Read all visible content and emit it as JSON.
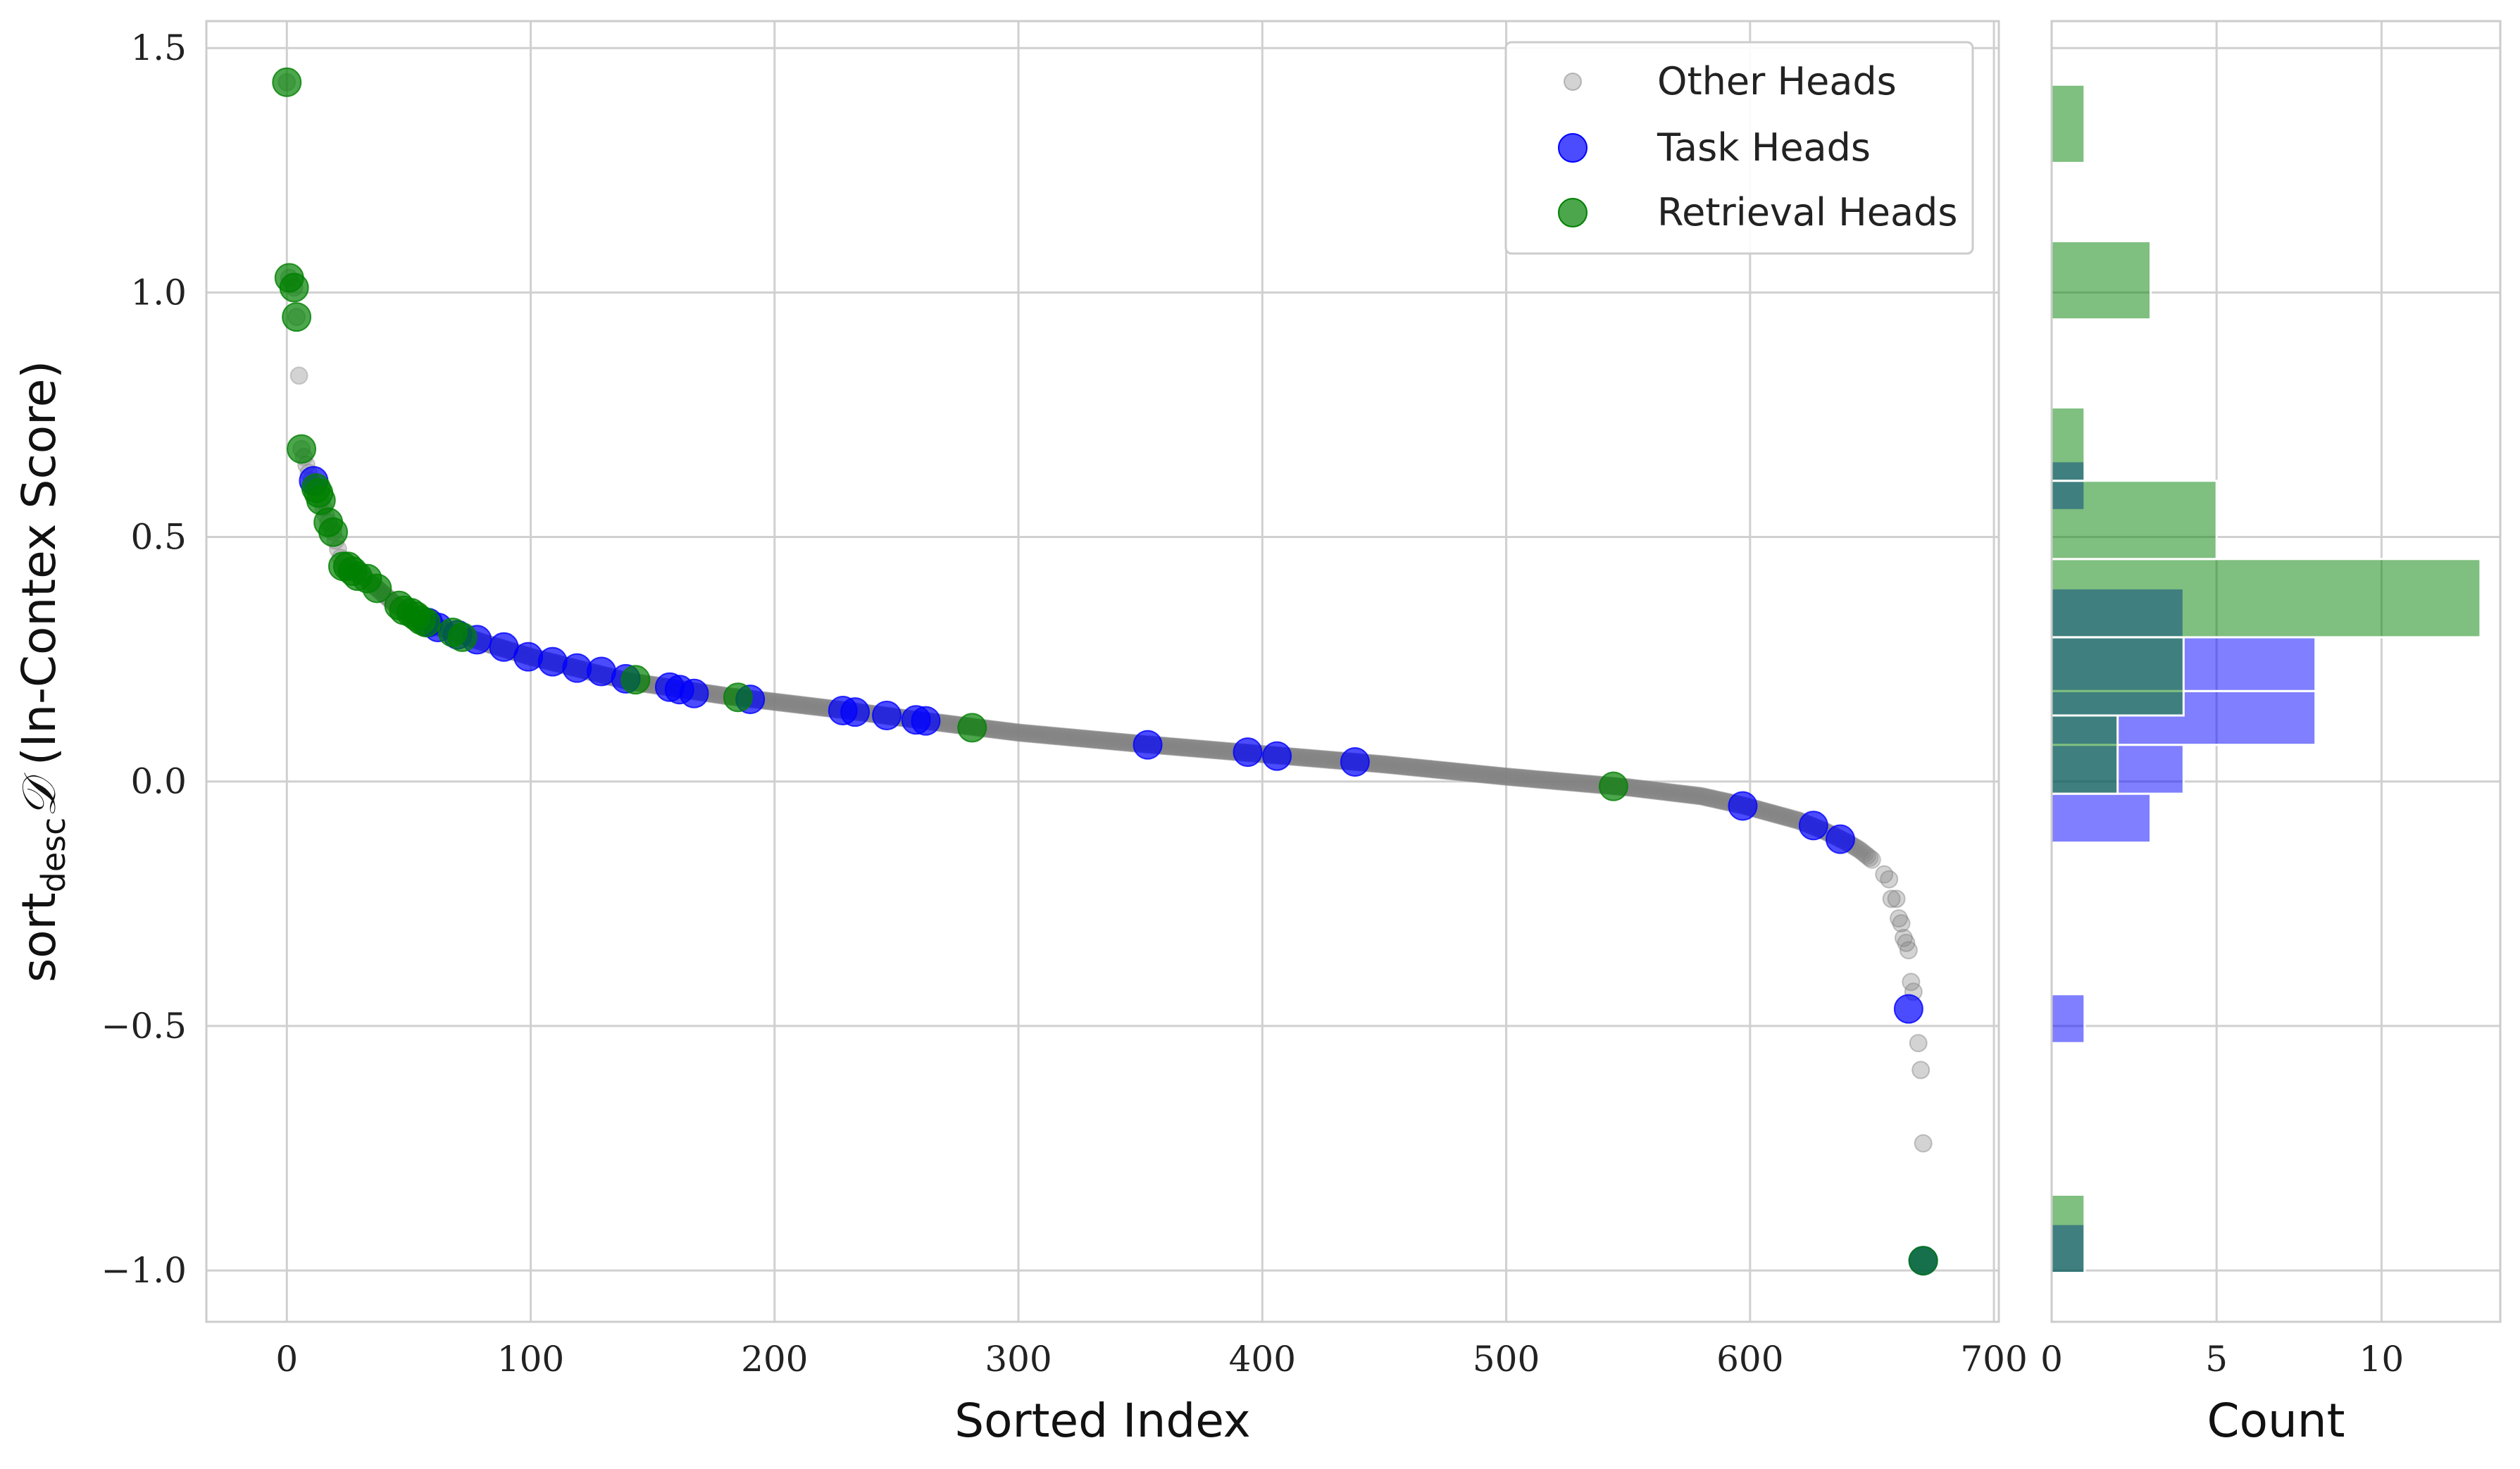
{
  "chart_data": [
    {
      "type": "scatter",
      "xlabel": "Sorted Index",
      "ylabel_prefix": "sort",
      "ylabel_subscript": "desc",
      "ylabel_symbol": "𝒟",
      "ylabel_suffix": " (In-Contex Score)",
      "xlim": [
        -33,
        702
      ],
      "ylim": [
        -1.105,
        1.555
      ],
      "x_ticks": [
        0,
        100,
        200,
        300,
        400,
        500,
        600,
        700
      ],
      "x_tick_labels": [
        "0",
        "100",
        "200",
        "300",
        "400",
        "500",
        "600",
        "700"
      ],
      "y_ticks": [
        -1.0,
        -0.5,
        0.0,
        0.5,
        1.0,
        1.5
      ],
      "y_tick_labels": [
        "−1.0",
        "−0.5",
        "0.0",
        "0.5",
        "1.0",
        "1.5"
      ],
      "grid": true,
      "legend_position": "top-right",
      "series": [
        {
          "name": "Other Heads",
          "color": "#808080",
          "curve": [
            [
              0,
              1.43
            ],
            [
              1,
              1.03
            ],
            [
              3,
              1.01
            ],
            [
              4,
              0.95
            ],
            [
              5,
              0.83
            ],
            [
              6,
              0.68
            ],
            [
              10,
              0.615
            ],
            [
              12,
              0.6
            ],
            [
              14,
              0.575
            ],
            [
              17,
              0.53
            ],
            [
              19,
              0.51
            ],
            [
              23,
              0.44
            ],
            [
              27,
              0.43
            ],
            [
              31,
              0.42
            ],
            [
              37,
              0.395
            ],
            [
              45,
              0.36
            ],
            [
              55,
              0.33
            ],
            [
              65,
              0.31
            ],
            [
              80,
              0.285
            ],
            [
              100,
              0.255
            ],
            [
              120,
              0.23
            ],
            [
              140,
              0.205
            ],
            [
              160,
              0.19
            ],
            [
              180,
              0.175
            ],
            [
              200,
              0.163
            ],
            [
              230,
              0.145
            ],
            [
              260,
              0.125
            ],
            [
              300,
              0.1
            ],
            [
              350,
              0.077
            ],
            [
              400,
              0.056
            ],
            [
              450,
              0.035
            ],
            [
              500,
              0.01
            ],
            [
              550,
              -0.012
            ],
            [
              580,
              -0.03
            ],
            [
              598,
              -0.05
            ],
            [
              620,
              -0.08
            ],
            [
              630,
              -0.1
            ],
            [
              640,
              -0.125
            ],
            [
              645,
              -0.14
            ],
            [
              650,
              -0.16
            ]
          ],
          "extra_points": [
            [
              655,
              -0.19
            ],
            [
              657,
              -0.2
            ],
            [
              658,
              -0.24
            ],
            [
              660,
              -0.24
            ],
            [
              661,
              -0.28
            ],
            [
              662,
              -0.29
            ],
            [
              663,
              -0.32
            ],
            [
              664,
              -0.33
            ],
            [
              665,
              -0.345
            ],
            [
              666,
              -0.41
            ],
            [
              667,
              -0.43
            ],
            [
              669,
              -0.535
            ],
            [
              670,
              -0.59
            ],
            [
              671,
              -0.74
            ]
          ]
        },
        {
          "name": "Task Heads",
          "color": "#0000ff",
          "points": [
            [
              11,
              0.615
            ],
            [
              58,
              0.325
            ],
            [
              62,
              0.315
            ],
            [
              70,
              0.3
            ],
            [
              78,
              0.29
            ],
            [
              89,
              0.275
            ],
            [
              99,
              0.255
            ],
            [
              109,
              0.245
            ],
            [
              119,
              0.232
            ],
            [
              129,
              0.225
            ],
            [
              139,
              0.21
            ],
            [
              157,
              0.193
            ],
            [
              161,
              0.188
            ],
            [
              167,
              0.18
            ],
            [
              190,
              0.168
            ],
            [
              228,
              0.145
            ],
            [
              233,
              0.142
            ],
            [
              246,
              0.135
            ],
            [
              258,
              0.126
            ],
            [
              262,
              0.124
            ],
            [
              353,
              0.075
            ],
            [
              394,
              0.06
            ],
            [
              406,
              0.052
            ],
            [
              438,
              0.04
            ],
            [
              597,
              -0.05
            ],
            [
              626,
              -0.09
            ],
            [
              637,
              -0.118
            ],
            [
              665,
              -0.465
            ],
            [
              671,
              -0.98
            ]
          ]
        },
        {
          "name": "Retrieval Heads",
          "color": "#008000",
          "points": [
            [
              0,
              1.43
            ],
            [
              1,
              1.03
            ],
            [
              3,
              1.01
            ],
            [
              4,
              0.95
            ],
            [
              6,
              0.68
            ],
            [
              12,
              0.6
            ],
            [
              13,
              0.59
            ],
            [
              14,
              0.575
            ],
            [
              17,
              0.53
            ],
            [
              19,
              0.51
            ],
            [
              23,
              0.44
            ],
            [
              25,
              0.44
            ],
            [
              27,
              0.43
            ],
            [
              29,
              0.42
            ],
            [
              33,
              0.415
            ],
            [
              37,
              0.395
            ],
            [
              46,
              0.36
            ],
            [
              48,
              0.35
            ],
            [
              51,
              0.345
            ],
            [
              53,
              0.338
            ],
            [
              55,
              0.33
            ],
            [
              57,
              0.325
            ],
            [
              68,
              0.305
            ],
            [
              72,
              0.295
            ],
            [
              143,
              0.208
            ],
            [
              185,
              0.172
            ],
            [
              281,
              0.11
            ],
            [
              544,
              -0.01
            ],
            [
              671,
              -0.98
            ]
          ]
        }
      ]
    },
    {
      "type": "bar",
      "orientation": "horizontal",
      "xlabel": "Count",
      "xlim": [
        0,
        13.6
      ],
      "x_ticks": [
        0,
        5,
        10
      ],
      "x_tick_labels": [
        "0",
        "5",
        "10"
      ],
      "grid": true,
      "series": [
        {
          "name": "Task Heads",
          "color": "#0000ff",
          "bins": [
            {
              "y0": -1.005,
              "y1": -0.905,
              "count": 1
            },
            {
              "y0": -0.535,
              "y1": -0.435,
              "count": 1
            },
            {
              "y0": -0.125,
              "y1": -0.025,
              "count": 3
            },
            {
              "y0": -0.025,
              "y1": 0.075,
              "count": 4
            },
            {
              "y0": 0.075,
              "y1": 0.185,
              "count": 8
            },
            {
              "y0": 0.185,
              "y1": 0.295,
              "count": 8
            },
            {
              "y0": 0.295,
              "y1": 0.395,
              "count": 4
            },
            {
              "y0": 0.555,
              "y1": 0.655,
              "count": 1
            }
          ]
        },
        {
          "name": "Retrieval Heads",
          "color": "#008000",
          "bins": [
            {
              "y0": -1.005,
              "y1": -0.845,
              "count": 1
            },
            {
              "y0": -0.025,
              "y1": 0.135,
              "count": 2
            },
            {
              "y0": 0.135,
              "y1": 0.295,
              "count": 4
            },
            {
              "y0": 0.295,
              "y1": 0.455,
              "count": 13
            },
            {
              "y0": 0.455,
              "y1": 0.615,
              "count": 5
            },
            {
              "y0": 0.615,
              "y1": 0.765,
              "count": 1
            },
            {
              "y0": 0.945,
              "y1": 1.105,
              "count": 3
            },
            {
              "y0": 1.265,
              "y1": 1.425,
              "count": 1
            }
          ]
        }
      ]
    }
  ]
}
